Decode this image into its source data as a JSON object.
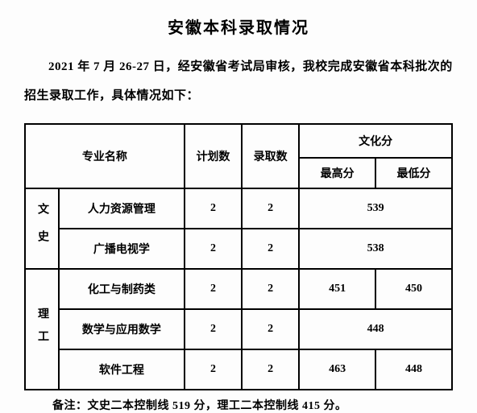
{
  "title": "安徽本科录取情况",
  "intro": "2021 年 7 月 26-27 日，经安徽省考试局审核，我校完成安徽省本科批次的招生录取工作，具体情况如下：",
  "headers": {
    "major": "专业名称",
    "plan": "计划数",
    "admit": "录取数",
    "culture": "文化分",
    "high": "最高分",
    "low": "最低分"
  },
  "categories": {
    "wenshi": "文史",
    "ligong": "理工"
  },
  "rows": [
    {
      "major": "人力资源管理",
      "plan": "2",
      "admit": "2",
      "merged_score": "539"
    },
    {
      "major": "广播电视学",
      "plan": "2",
      "admit": "2",
      "merged_score": "538"
    },
    {
      "major": "化工与制药类",
      "plan": "2",
      "admit": "2",
      "high": "451",
      "low": "450"
    },
    {
      "major": "数学与应用数学",
      "plan": "2",
      "admit": "2",
      "merged_score": "448"
    },
    {
      "major": "软件工程",
      "plan": "2",
      "admit": "2",
      "high": "463",
      "low": "448"
    }
  ],
  "note": "备注：文史二本控制线 519 分，理工二本控制线 415 分。",
  "colors": {
    "background": "#fdfdfd",
    "text": "#000000",
    "border": "#000000"
  }
}
